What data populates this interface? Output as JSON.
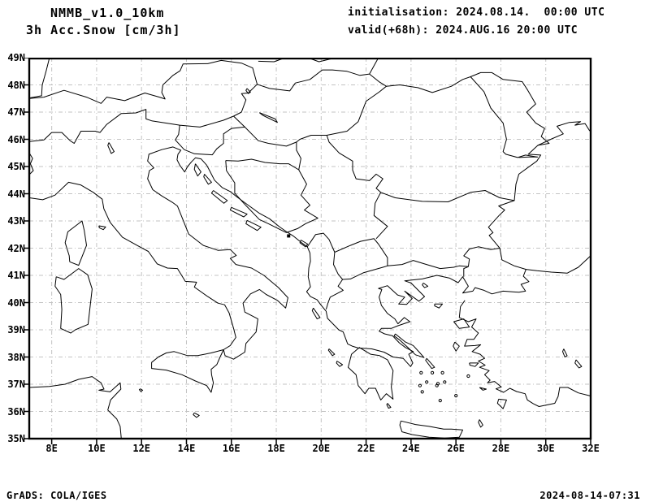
{
  "header": {
    "model_line": "NMMB_v1.0_10km",
    "product_line": "3h Acc.Snow [cm/3h]",
    "init_line": "initialisation: 2024.08.14.  00:00 UTC",
    "valid_line": "valid(+68h): 2024.AUG.16 20:00 UTC"
  },
  "map": {
    "lon_range": [
      7,
      32
    ],
    "lat_range": [
      35,
      49
    ],
    "lat_ticks": [
      {
        "value": 49,
        "label": "49N"
      },
      {
        "value": 48,
        "label": "48N"
      },
      {
        "value": 47,
        "label": "47N"
      },
      {
        "value": 46,
        "label": "46N"
      },
      {
        "value": 45,
        "label": "45N"
      },
      {
        "value": 44,
        "label": "44N"
      },
      {
        "value": 43,
        "label": "43N"
      },
      {
        "value": 42,
        "label": "42N"
      },
      {
        "value": 41,
        "label": "41N"
      },
      {
        "value": 40,
        "label": "40N"
      },
      {
        "value": 39,
        "label": "39N"
      },
      {
        "value": 38,
        "label": "38N"
      },
      {
        "value": 37,
        "label": "37N"
      },
      {
        "value": 36,
        "label": "36N"
      },
      {
        "value": 35,
        "label": "35N"
      }
    ],
    "lon_ticks": [
      {
        "value": 8,
        "label": "8E"
      },
      {
        "value": 10,
        "label": "10E"
      },
      {
        "value": 12,
        "label": "12E"
      },
      {
        "value": 14,
        "label": "14E"
      },
      {
        "value": 16,
        "label": "16E"
      },
      {
        "value": 18,
        "label": "18E"
      },
      {
        "value": 20,
        "label": "20E"
      },
      {
        "value": 22,
        "label": "22E"
      },
      {
        "value": 24,
        "label": "24E"
      },
      {
        "value": 26,
        "label": "26E"
      },
      {
        "value": 28,
        "label": "28E"
      },
      {
        "value": 30,
        "label": "30E"
      },
      {
        "value": 32,
        "label": "32E"
      }
    ]
  },
  "footer": {
    "left": "GrADS: COLA/IGES",
    "right": "2024-08-14-07:31"
  },
  "colors": {
    "background": "#ffffff",
    "grid": "#c3c3c3",
    "coastline": "#000000",
    "frame": "#000000",
    "text": "#000000"
  }
}
